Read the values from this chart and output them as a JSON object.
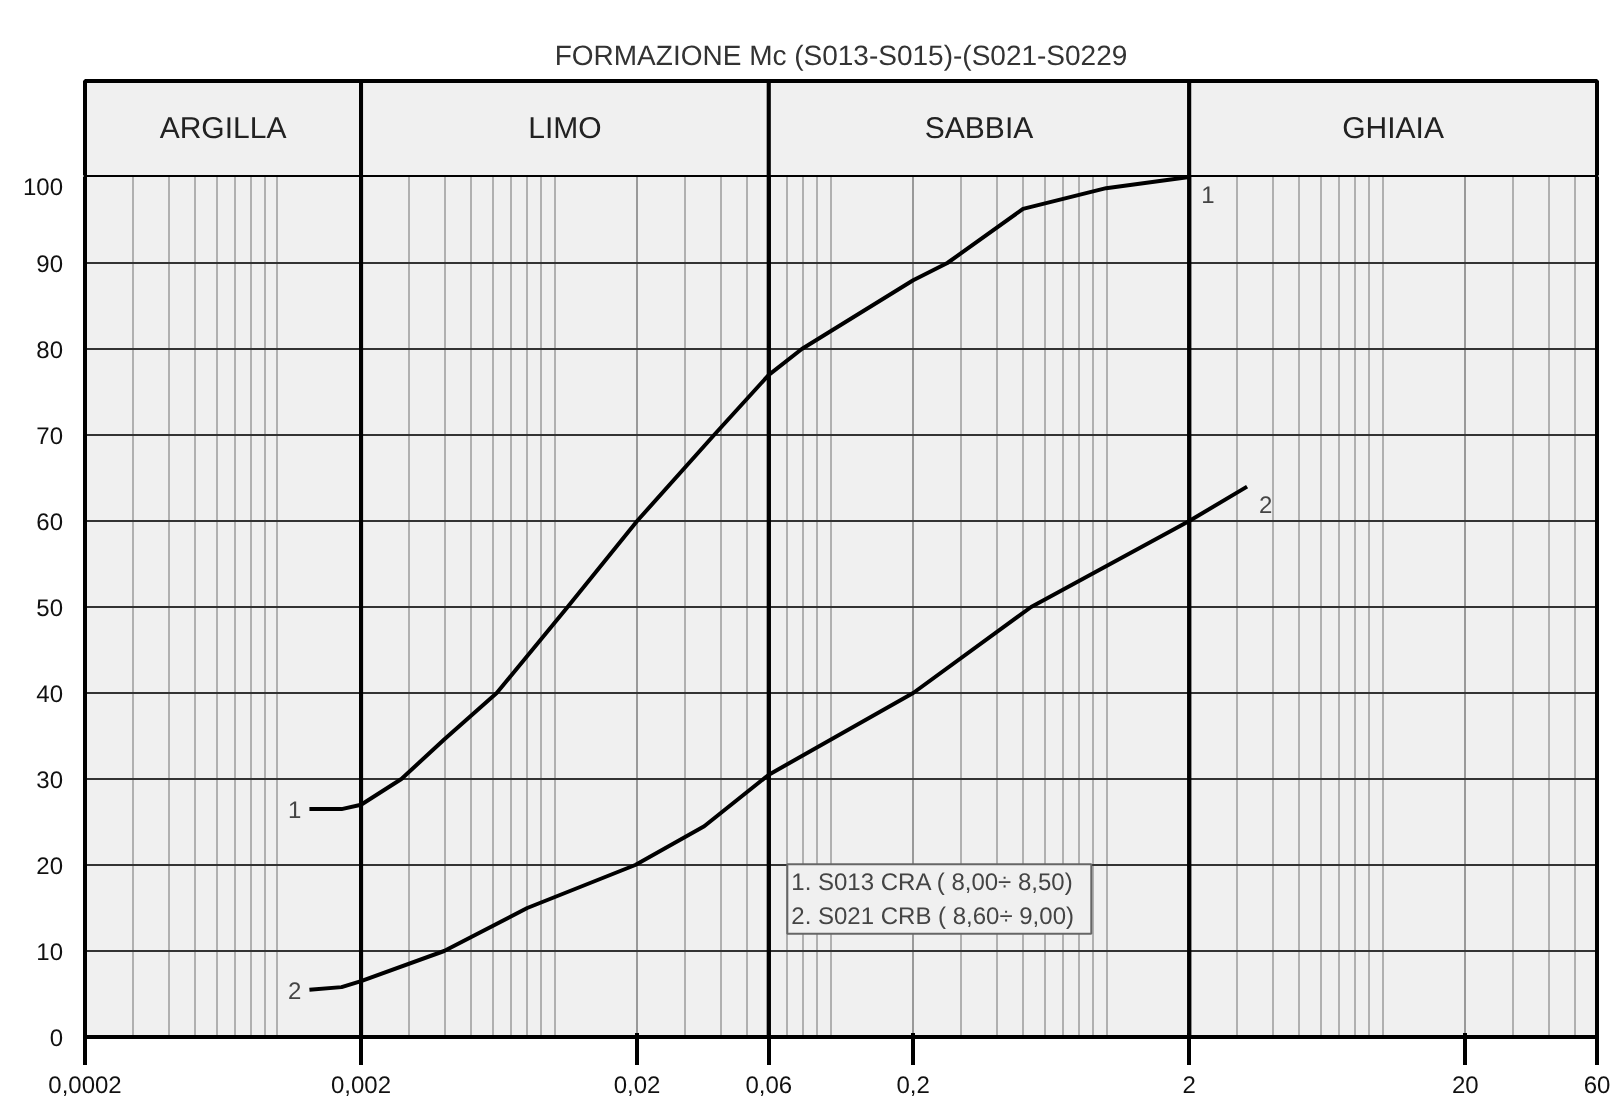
{
  "chart_data": {
    "type": "line",
    "title": "FORMAZIONE Mc (S013-S015)-(S021-S0229",
    "series": [
      {
        "name": "1",
        "color": "#000000",
        "x": [
          0.0013,
          0.0017,
          0.002,
          0.0028,
          0.004,
          0.0062,
          0.0112,
          0.02,
          0.038,
          0.06,
          0.079,
          0.2,
          0.266,
          0.5,
          1,
          2
        ],
        "values": [
          26.5,
          26.5,
          27,
          30,
          34.6,
          40,
          50,
          60,
          70,
          77,
          80,
          88,
          90,
          96.3,
          98.7,
          100
        ]
      },
      {
        "name": "2",
        "color": "#000000",
        "x": [
          0.0013,
          0.0017,
          0.002,
          0.004,
          0.008,
          0.0197,
          0.035,
          0.06,
          0.2,
          0.535,
          2,
          3.24
        ],
        "values": [
          5.5,
          5.8,
          6.5,
          10,
          15,
          20,
          24.5,
          30.5,
          40,
          50,
          60,
          64
        ]
      }
    ],
    "log": "x",
    "xlim": [
      0.0002,
      60
    ],
    "ylim": [
      0,
      100
    ],
    "xticks": [
      {
        "value": 0.0002,
        "label": "0,0002"
      },
      {
        "value": 0.002,
        "label": "0,002"
      },
      {
        "value": 0.02,
        "label": "0,02"
      },
      {
        "value": 0.06,
        "label": "0,06"
      },
      {
        "value": 0.2,
        "label": "0,2"
      },
      2,
      20,
      60
    ],
    "yticks": [
      0,
      10,
      20,
      30,
      40,
      50,
      60,
      70,
      80,
      90,
      100
    ],
    "grid": true,
    "marker": "none",
    "line_style": "solid",
    "bands": [
      {
        "axis": "x",
        "from": 0.0002,
        "to": 0.002,
        "label": "ARGILLA",
        "color": "#f0f0f0"
      },
      {
        "axis": "x",
        "from": 0.002,
        "to": 0.06,
        "label": "LIMO",
        "color": "#f0f0f0"
      },
      {
        "axis": "x",
        "from": 0.06,
        "to": 2,
        "label": "SABBIA",
        "color": "#f0f0f0"
      },
      {
        "axis": "x",
        "from": 2,
        "to": 60,
        "label": "GHIAIA",
        "color": "#f0f0f0"
      }
    ],
    "annotations": [
      "1. S013  CRA  ( 8,00÷ 8,50)",
      "2. S021 CRB   ( 8,60÷ 9,00)"
    ]
  }
}
